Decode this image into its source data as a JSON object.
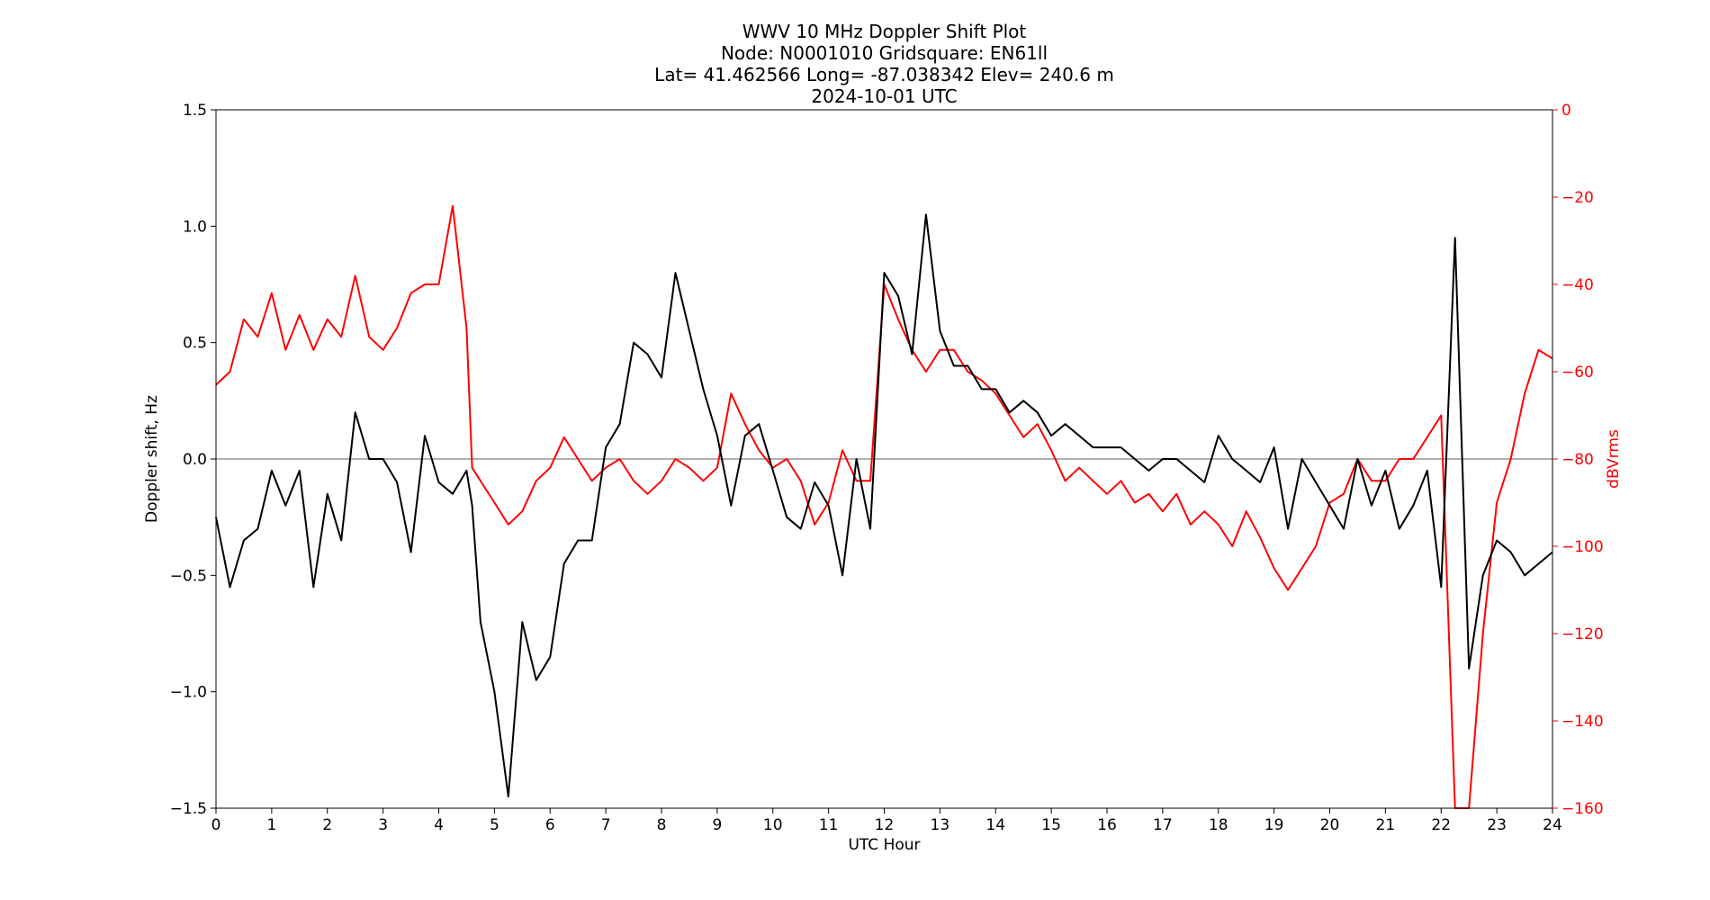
{
  "chart_data": {
    "type": "line",
    "title_lines": [
      "WWV 10 MHz Doppler Shift Plot",
      "Node:  N0001010     Gridsquare:  EN61ll",
      "Lat= 41.462566    Long= -87.038342    Elev= 240.6 m",
      "2024-10-01  UTC"
    ],
    "xlabel": "UTC Hour",
    "ylabel_left": "Doppler shift, Hz",
    "ylabel_right": "dBVrms",
    "xlim": [
      0,
      24
    ],
    "ylim_left": [
      -1.5,
      1.5
    ],
    "ylim_right": [
      -160,
      0
    ],
    "x_ticks": [
      "0",
      "1",
      "2",
      "3",
      "4",
      "5",
      "6",
      "7",
      "8",
      "9",
      "10",
      "11",
      "12",
      "13",
      "14",
      "15",
      "16",
      "17",
      "18",
      "19",
      "20",
      "21",
      "22",
      "23",
      "24"
    ],
    "y_ticks_left": [
      "−1.5",
      "−1.0",
      "−0.5",
      "0.0",
      "0.5",
      "1.0",
      "1.5"
    ],
    "y_ticks_left_values": [
      -1.5,
      -1.0,
      -0.5,
      0.0,
      0.5,
      1.0,
      1.5
    ],
    "y_ticks_right": [
      "−160",
      "−140",
      "−120",
      "−100",
      "−80",
      "−60",
      "−40",
      "−20",
      "0"
    ],
    "y_ticks_right_values": [
      -160,
      -140,
      -120,
      -100,
      -80,
      -60,
      -40,
      -20,
      0
    ],
    "zero_line": 0.0,
    "colors": {
      "doppler": "#000000",
      "power": "#ff0000",
      "zero_line": "#808080",
      "right_axis": "#ff0000"
    },
    "series": [
      {
        "axis": "left",
        "x": [
          0,
          0.25,
          0.5,
          0.75,
          1,
          1.25,
          1.5,
          1.75,
          2,
          2.25,
          2.5,
          2.75,
          3,
          3.25,
          3.5,
          3.75,
          4,
          4.25,
          4.5,
          4.6,
          4.75,
          5,
          5.25,
          5.5,
          5.75,
          6,
          6.25,
          6.5,
          6.75,
          7,
          7.25,
          7.5,
          7.75,
          8,
          8.25,
          8.5,
          8.75,
          9,
          9.25,
          9.5,
          9.75,
          10,
          10.25,
          10.5,
          10.75,
          11,
          11.25,
          11.5,
          11.75,
          12,
          12.25,
          12.5,
          12.75,
          13,
          13.25,
          13.5,
          13.75,
          14,
          14.25,
          14.5,
          14.75,
          15,
          15.25,
          15.5,
          15.75,
          16,
          16.25,
          16.5,
          16.75,
          17,
          17.25,
          17.5,
          17.75,
          18,
          18.25,
          18.5,
          18.75,
          19,
          19.25,
          19.5,
          19.75,
          20,
          20.25,
          20.5,
          20.75,
          21,
          21.25,
          21.5,
          21.75,
          22,
          22.25,
          22.5,
          22.75,
          23,
          23.25,
          23.5,
          23.75,
          24
        ],
        "y": [
          -0.25,
          -0.55,
          -0.35,
          -0.3,
          -0.05,
          -0.2,
          -0.05,
          -0.55,
          -0.15,
          -0.35,
          0.2,
          0.0,
          0.0,
          -0.1,
          -0.4,
          0.1,
          -0.1,
          -0.15,
          -0.05,
          -0.2,
          -0.7,
          -1.0,
          -1.45,
          -0.7,
          -0.95,
          -0.85,
          -0.45,
          -0.35,
          -0.35,
          0.05,
          0.15,
          0.5,
          0.45,
          0.35,
          0.8,
          0.55,
          0.3,
          0.1,
          -0.2,
          0.1,
          0.15,
          -0.05,
          -0.25,
          -0.3,
          -0.1,
          -0.2,
          -0.5,
          0.0,
          -0.3,
          0.8,
          0.7,
          0.45,
          1.05,
          0.55,
          0.4,
          0.4,
          0.3,
          0.3,
          0.2,
          0.25,
          0.2,
          0.1,
          0.15,
          0.1,
          0.05,
          0.05,
          0.05,
          0.0,
          -0.05,
          0.0,
          0.0,
          -0.05,
          -0.1,
          0.1,
          0.0,
          -0.05,
          -0.1,
          0.05,
          -0.3,
          0.0,
          -0.1,
          -0.2,
          -0.3,
          0.0,
          -0.2,
          -0.05,
          -0.3,
          -0.2,
          -0.05,
          -0.55,
          0.95,
          -0.9,
          -0.5,
          -0.35,
          -0.4,
          -0.5,
          -0.45,
          -0.4
        ]
      },
      {
        "axis": "right",
        "x": [
          0,
          0.25,
          0.5,
          0.75,
          1,
          1.25,
          1.5,
          1.75,
          2,
          2.25,
          2.5,
          2.75,
          3,
          3.25,
          3.5,
          3.75,
          4,
          4.25,
          4.5,
          4.6,
          4.75,
          5,
          5.25,
          5.5,
          5.75,
          6,
          6.25,
          6.5,
          6.75,
          7,
          7.25,
          7.5,
          7.75,
          8,
          8.25,
          8.5,
          8.75,
          9,
          9.25,
          9.5,
          9.75,
          10,
          10.25,
          10.5,
          10.75,
          11,
          11.25,
          11.5,
          11.75,
          12,
          12.25,
          12.5,
          12.75,
          13,
          13.25,
          13.5,
          13.75,
          14,
          14.25,
          14.5,
          14.75,
          15,
          15.25,
          15.5,
          15.75,
          16,
          16.25,
          16.5,
          16.75,
          17,
          17.25,
          17.5,
          17.75,
          18,
          18.25,
          18.5,
          18.75,
          19,
          19.25,
          19.5,
          19.75,
          20,
          20.25,
          20.5,
          20.75,
          21,
          21.25,
          21.5,
          21.75,
          22,
          22.25,
          22.5,
          22.75,
          23,
          23.25,
          23.5,
          23.75,
          24
        ],
        "y": [
          -63,
          -60,
          -48,
          -52,
          -42,
          -55,
          -47,
          -55,
          -48,
          -52,
          -38,
          -52,
          -55,
          -50,
          -42,
          -40,
          -40,
          -22,
          -50,
          -82,
          -85,
          -90,
          -95,
          -92,
          -85,
          -82,
          -75,
          -80,
          -85,
          -82,
          -80,
          -85,
          -88,
          -85,
          -80,
          -82,
          -85,
          -82,
          -65,
          -72,
          -78,
          -82,
          -80,
          -85,
          -95,
          -90,
          -78,
          -85,
          -85,
          -40,
          -48,
          -55,
          -60,
          -55,
          -55,
          -60,
          -62,
          -65,
          -70,
          -75,
          -72,
          -78,
          -85,
          -82,
          -85,
          -88,
          -85,
          -90,
          -88,
          -92,
          -88,
          -95,
          -92,
          -95,
          -100,
          -92,
          -98,
          -105,
          -110,
          -105,
          -100,
          -90,
          -88,
          -80,
          -85,
          -85,
          -80,
          -80,
          -75,
          -70,
          -160,
          -160,
          -120,
          -90,
          -80,
          -65,
          -55,
          -57
        ]
      }
    ]
  }
}
